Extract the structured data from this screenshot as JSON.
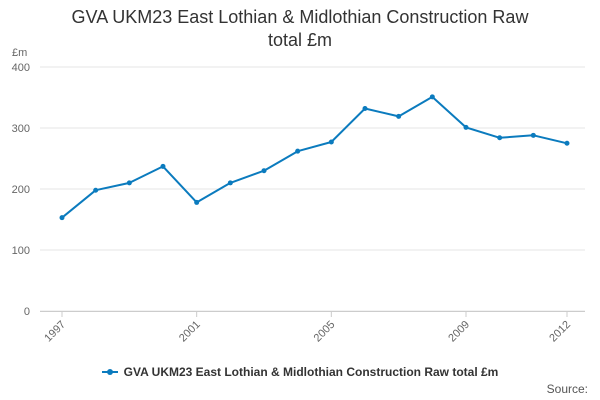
{
  "chart_data": {
    "type": "line",
    "title_lines": [
      "GVA UKM23 East Lothian & Midlothian Construction Raw",
      "total £m"
    ],
    "ylabel": "£m",
    "xlabel": "",
    "ylim": [
      0,
      400
    ],
    "yticks": [
      0,
      100,
      200,
      300,
      400
    ],
    "xlim": [
      1997,
      2012
    ],
    "xticks": [
      1997,
      2001,
      2005,
      2009,
      2012
    ],
    "grid": true,
    "legend_position": "bottom",
    "series": [
      {
        "name": "GVA UKM23 East Lothian & Midlothian Construction Raw total £m",
        "color": "#0b7bbe",
        "x": [
          1997,
          1998,
          1999,
          2000,
          2001,
          2002,
          2003,
          2004,
          2005,
          2006,
          2007,
          2008,
          2009,
          2010,
          2011,
          2012
        ],
        "values": [
          153,
          198,
          210,
          237,
          178,
          210,
          230,
          262,
          277,
          332,
          319,
          351,
          301,
          284,
          288,
          275
        ]
      }
    ]
  },
  "footer": {
    "source_label": "Source:"
  }
}
